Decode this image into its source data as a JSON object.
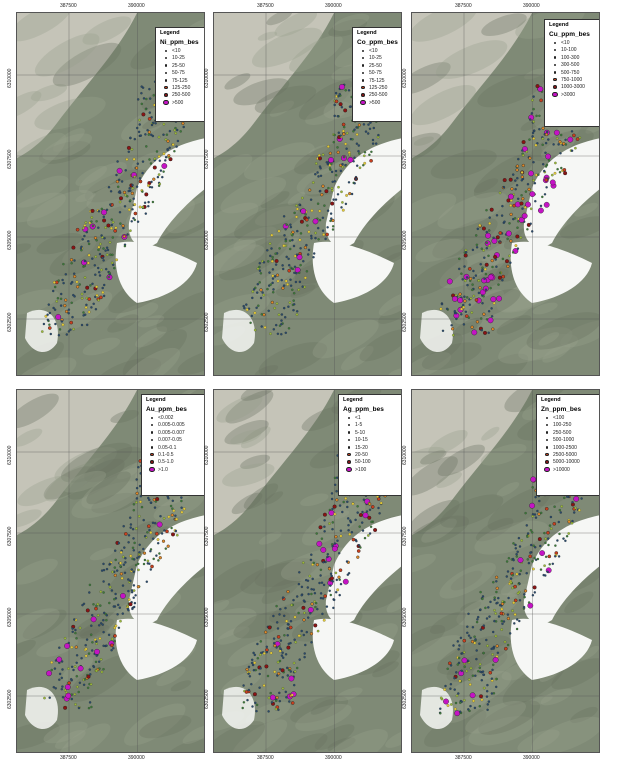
{
  "axes": {
    "x_ticks": [
      "387500",
      "390000"
    ],
    "y_ticks": [
      "6310000",
      "6307500",
      "6305000",
      "6302500"
    ]
  },
  "legend_title": "Legend",
  "colors": {
    "class_colors": [
      "#2a4a6a",
      "#3d7a3a",
      "#9ab83a",
      "#e0c83a",
      "#e08a2a",
      "#c8401e",
      "#8a1414",
      "#c414c4"
    ],
    "snow": "#f6f7f5",
    "valley": "#c9c7bc",
    "mountain": "#7f8a76"
  },
  "panels": [
    {
      "field": "Ni_ppm_bes",
      "classes": [
        "<10",
        "10-25",
        "25-50",
        "50-75",
        "75-125",
        "125-250",
        "250-500",
        ">500"
      ]
    },
    {
      "field": "Co_ppm_bes",
      "classes": [
        "<10",
        "10-25",
        "25-50",
        "50-75",
        "75-125",
        "125-250",
        "250-500",
        ">500"
      ]
    },
    {
      "field": "Cu_ppm_bes",
      "classes": [
        "<10",
        "10-100",
        "100-300",
        "300-500",
        "500-750",
        "750-1000",
        "1000-3000",
        ">3000"
      ]
    },
    {
      "field": "Au_ppm_bes",
      "classes": [
        "<0.002",
        "0.005-0.005",
        "0.005-0.007",
        "0.007-0.05",
        "0.05-0.1",
        "0.1-0.5",
        "0.5-1.0",
        ">1.0"
      ]
    },
    {
      "field": "Ag_ppm_bes",
      "classes": [
        "<1",
        "1-5",
        "5-10",
        "10-15",
        "15-20",
        "20-50",
        "50-100",
        ">100"
      ]
    },
    {
      "field": "Zn_ppm_bes",
      "classes": [
        "<100",
        "100-250",
        "250-500",
        "500-1000",
        "1000-2500",
        "2500-5000",
        "5000-10000",
        ">10000"
      ]
    }
  ]
}
